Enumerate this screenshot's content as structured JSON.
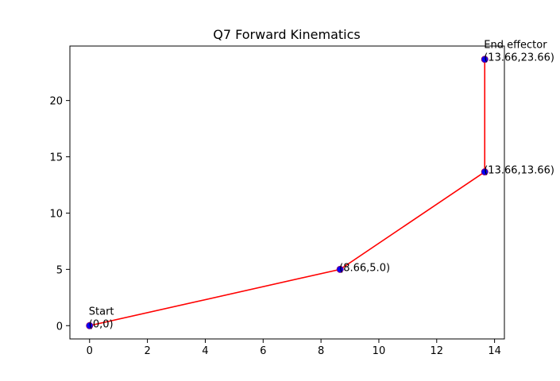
{
  "chart_data": {
    "type": "line",
    "title": "Q7 Forward Kinematics",
    "xlabel": "",
    "ylabel": "",
    "xlim": [
      -0.68,
      14.34
    ],
    "ylim": [
      -1.18,
      24.84
    ],
    "xticks": [
      0,
      2,
      4,
      6,
      8,
      10,
      12,
      14
    ],
    "yticks": [
      0,
      5,
      10,
      15,
      20
    ],
    "grid": false,
    "line_color": "#ff0000",
    "marker_fill": "#0000ff",
    "marker_edge": "#800080",
    "points": [
      {
        "x": 0,
        "y": 0,
        "labels": [
          "Start",
          "(0,0)"
        ]
      },
      {
        "x": 8.66,
        "y": 5.0,
        "labels": [
          "(8.66,5.0)"
        ]
      },
      {
        "x": 13.66,
        "y": 13.66,
        "labels": [
          "(13.66,13.66)"
        ]
      },
      {
        "x": 13.66,
        "y": 23.66,
        "labels": [
          "End effector",
          "(13.66,23.66)"
        ]
      }
    ]
  }
}
